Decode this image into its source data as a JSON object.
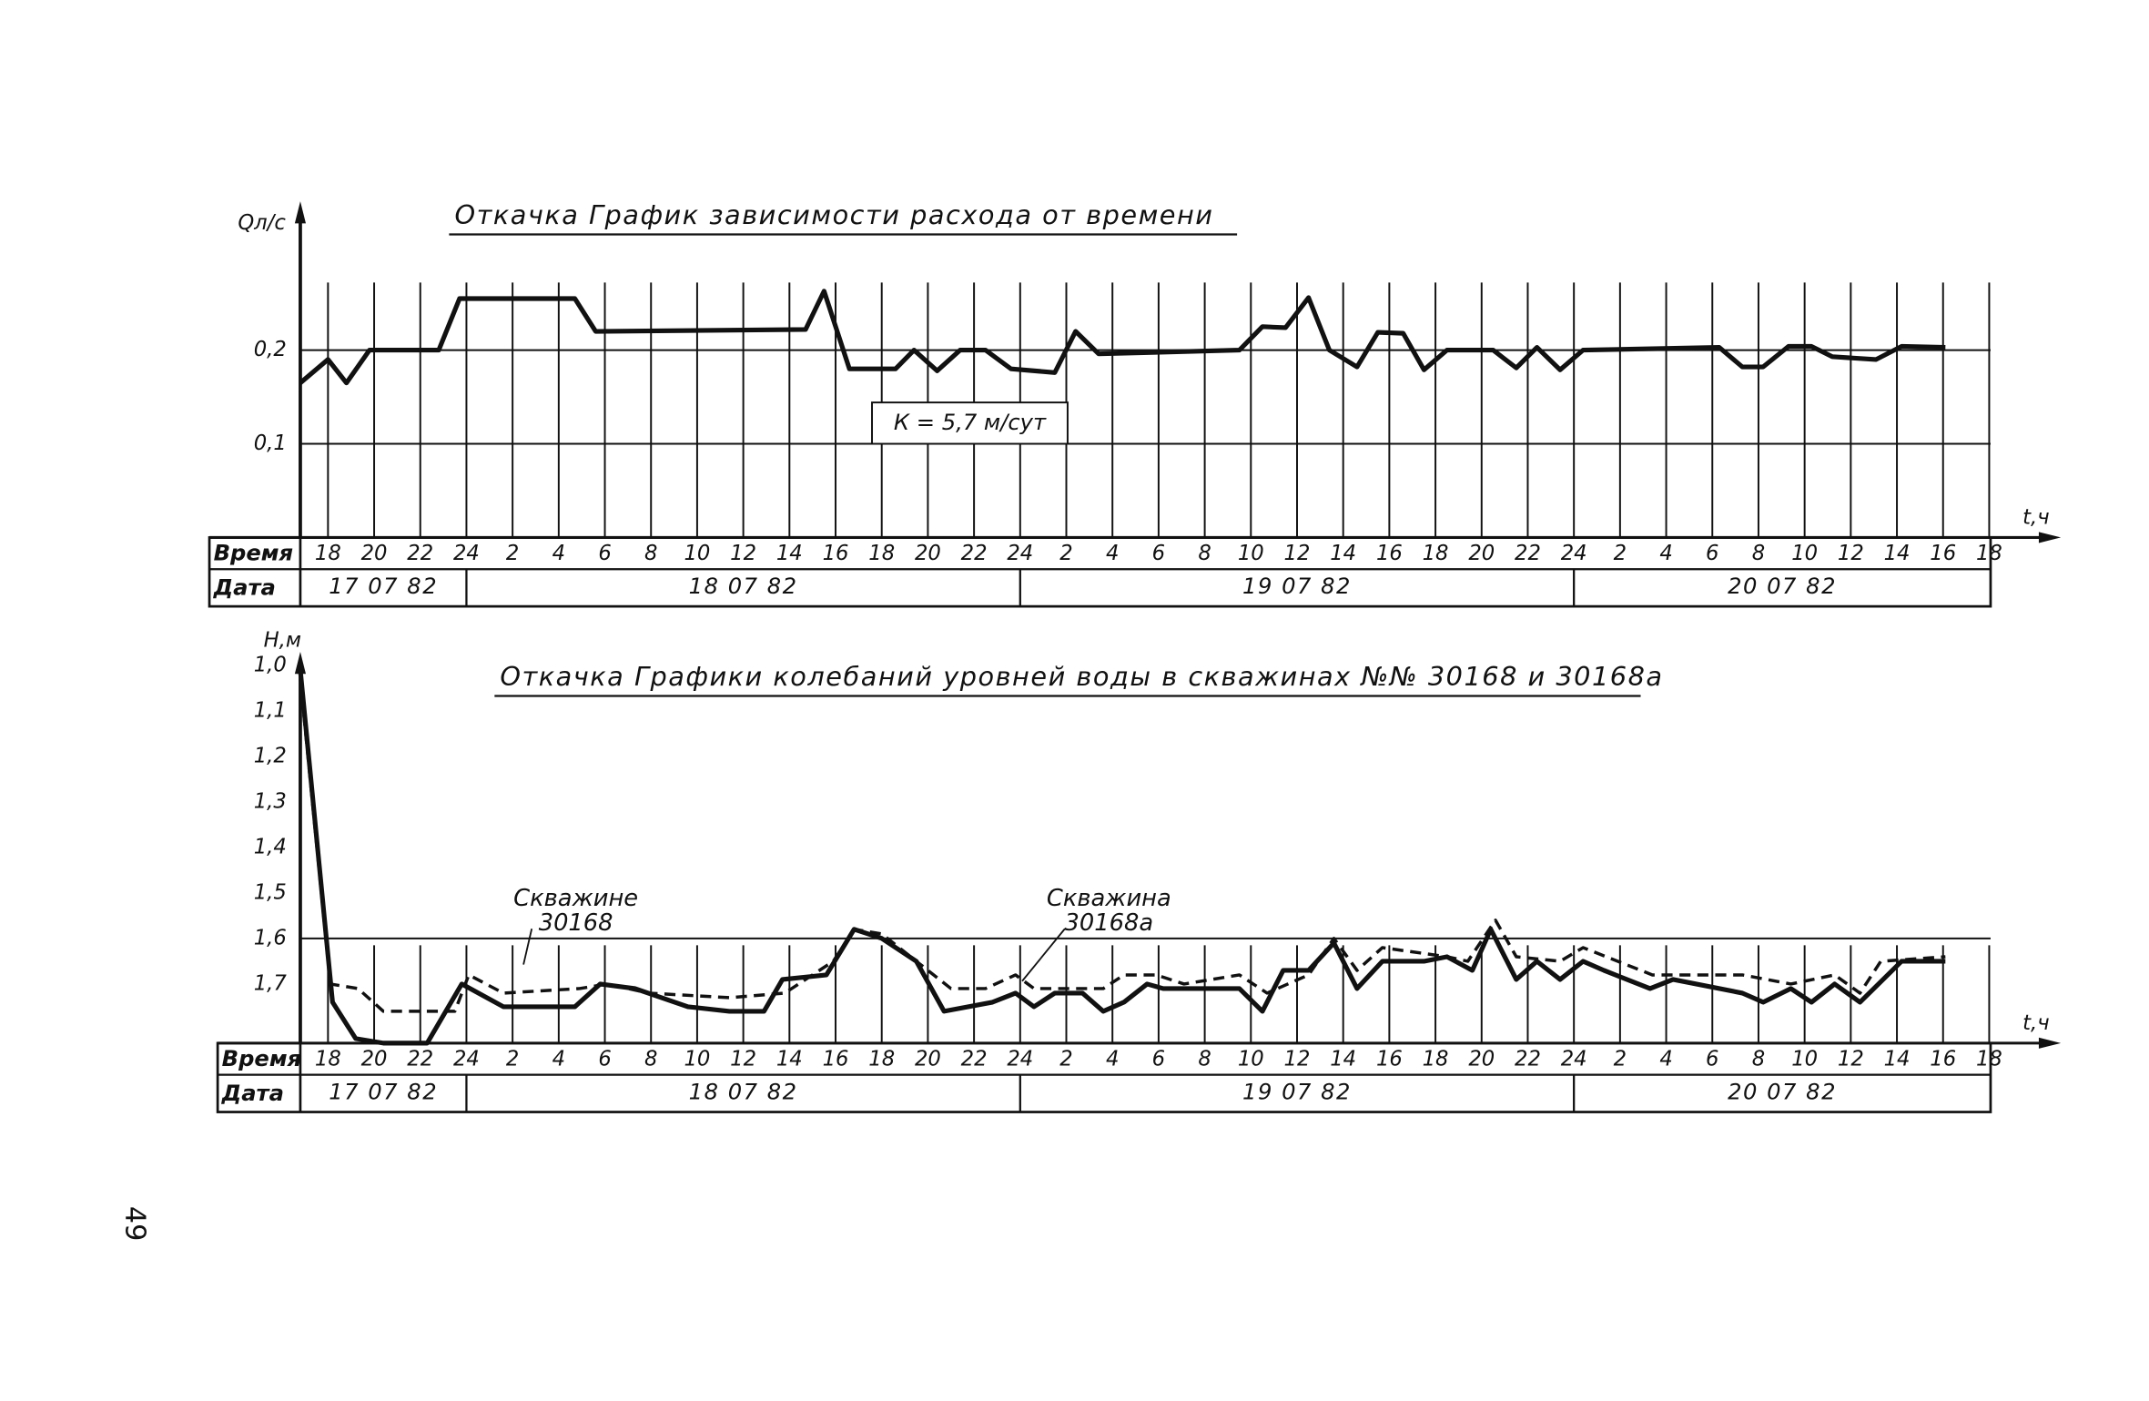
{
  "chart_data": [
    {
      "type": "line",
      "title": "Откачка  График зависимости расхода от времени",
      "y_label": "Qл/с",
      "x_label": "t,ч",
      "row_labels": [
        "Время",
        "Дата"
      ],
      "date_labels": [
        "17 07 82",
        "18 07 82",
        "19 07 82",
        "20 07 82"
      ],
      "annotation": "К = 5,7 м/сут",
      "xlim": [
        -1.2,
        72
      ],
      "ylim": [
        0,
        0.35
      ],
      "grid": true,
      "yticks": [
        {
          "value": 0.1,
          "label": "0,1"
        },
        {
          "value": 0.2,
          "label": "0,2"
        }
      ],
      "xticks": [
        {
          "value": 0,
          "label": "18"
        },
        {
          "value": 2,
          "label": "20"
        },
        {
          "value": 4,
          "label": "22"
        },
        {
          "value": 6,
          "label": "24"
        },
        {
          "value": 8,
          "label": "2"
        },
        {
          "value": 10,
          "label": "4"
        },
        {
          "value": 12,
          "label": "6"
        },
        {
          "value": 14,
          "label": "8"
        },
        {
          "value": 16,
          "label": "10"
        },
        {
          "value": 18,
          "label": "12"
        },
        {
          "value": 20,
          "label": "14"
        },
        {
          "value": 22,
          "label": "16"
        },
        {
          "value": 24,
          "label": "18"
        },
        {
          "value": 26,
          "label": "20"
        },
        {
          "value": 28,
          "label": "22"
        },
        {
          "value": 30,
          "label": "24"
        },
        {
          "value": 32,
          "label": "2"
        },
        {
          "value": 34,
          "label": "4"
        },
        {
          "value": 36,
          "label": "6"
        },
        {
          "value": 38,
          "label": "8"
        },
        {
          "value": 40,
          "label": "10"
        },
        {
          "value": 42,
          "label": "12"
        },
        {
          "value": 44,
          "label": "14"
        },
        {
          "value": 46,
          "label": "16"
        },
        {
          "value": 48,
          "label": "18"
        },
        {
          "value": 50,
          "label": "20"
        },
        {
          "value": 52,
          "label": "22"
        },
        {
          "value": 54,
          "label": "24"
        },
        {
          "value": 56,
          "label": "2"
        },
        {
          "value": 58,
          "label": "4"
        },
        {
          "value": 60,
          "label": "6"
        },
        {
          "value": 62,
          "label": "8"
        },
        {
          "value": 64,
          "label": "10"
        },
        {
          "value": 66,
          "label": "12"
        },
        {
          "value": 68,
          "label": "14"
        },
        {
          "value": 70,
          "label": "16"
        },
        {
          "value": 72,
          "label": "18"
        }
      ],
      "series": [
        {
          "color": "#111",
          "style": "solid",
          "x": [
            -1.2,
            0,
            0.8,
            1.8,
            4.8,
            5.7,
            10.7,
            11.6,
            20.7,
            21.5,
            22.6,
            24.6,
            25.4,
            26.4,
            27.4,
            28.5,
            29.6,
            31.5,
            32.4,
            33.4,
            39.5,
            40.5,
            41.5,
            42.5,
            43.4,
            44.6,
            45.5,
            46.6,
            47.5,
            48.5,
            50.5,
            51.5,
            52.4,
            53.4,
            54.4,
            60.3,
            61.3,
            62.2,
            63.3,
            64.3,
            65.2,
            67.1,
            68.2,
            70.1
          ],
          "values": [
            0.165,
            0.19,
            0.165,
            0.2,
            0.2,
            0.255,
            0.255,
            0.22,
            0.222,
            0.263,
            0.18,
            0.18,
            0.2,
            0.178,
            0.2,
            0.2,
            0.18,
            0.176,
            0.22,
            0.196,
            0.2,
            0.225,
            0.224,
            0.256,
            0.2,
            0.182,
            0.219,
            0.218,
            0.179,
            0.2,
            0.2,
            0.181,
            0.203,
            0.179,
            0.2,
            0.203,
            0.182,
            0.182,
            0.204,
            0.204,
            0.193,
            0.19,
            0.204,
            0.203
          ]
        }
      ]
    },
    {
      "type": "line",
      "title": "Откачка  Графики колебаний уровней воды в скважинах №№ 30168 и 30168а",
      "y_label": "H,м",
      "x_label": "t,ч",
      "row_labels": [
        "Время",
        "Дата"
      ],
      "date_labels": [
        "17 07 82",
        "18 07 82",
        "19 07 82",
        "20 07 82"
      ],
      "xlim": [
        -1.2,
        72
      ],
      "ylim": [
        1.83,
        0.97
      ],
      "ygrid": [
        1.6
      ],
      "yticks": [
        {
          "value": 1.0,
          "label": "1,0"
        },
        {
          "value": 1.1,
          "label": "1,1"
        },
        {
          "value": 1.2,
          "label": "1,2"
        },
        {
          "value": 1.3,
          "label": "1,3"
        },
        {
          "value": 1.4,
          "label": "1,4"
        },
        {
          "value": 1.5,
          "label": "1,5"
        },
        {
          "value": 1.6,
          "label": "1,6"
        },
        {
          "value": 1.7,
          "label": "1,7"
        }
      ],
      "xticks": [
        {
          "value": 0,
          "label": "18"
        },
        {
          "value": 2,
          "label": "20"
        },
        {
          "value": 4,
          "label": "22"
        },
        {
          "value": 6,
          "label": "24"
        },
        {
          "value": 8,
          "label": "2"
        },
        {
          "value": 10,
          "label": "4"
        },
        {
          "value": 12,
          "label": "6"
        },
        {
          "value": 14,
          "label": "8"
        },
        {
          "value": 16,
          "label": "10"
        },
        {
          "value": 18,
          "label": "12"
        },
        {
          "value": 20,
          "label": "14"
        },
        {
          "value": 22,
          "label": "16"
        },
        {
          "value": 24,
          "label": "18"
        },
        {
          "value": 26,
          "label": "20"
        },
        {
          "value": 28,
          "label": "22"
        },
        {
          "value": 30,
          "label": "24"
        },
        {
          "value": 32,
          "label": "2"
        },
        {
          "value": 34,
          "label": "4"
        },
        {
          "value": 36,
          "label": "6"
        },
        {
          "value": 38,
          "label": "8"
        },
        {
          "value": 40,
          "label": "10"
        },
        {
          "value": 42,
          "label": "12"
        },
        {
          "value": 44,
          "label": "14"
        },
        {
          "value": 46,
          "label": "16"
        },
        {
          "value": 48,
          "label": "18"
        },
        {
          "value": 50,
          "label": "20"
        },
        {
          "value": 52,
          "label": "22"
        },
        {
          "value": 54,
          "label": "24"
        },
        {
          "value": 56,
          "label": "2"
        },
        {
          "value": 58,
          "label": "4"
        },
        {
          "value": 60,
          "label": "6"
        },
        {
          "value": 62,
          "label": "8"
        },
        {
          "value": 64,
          "label": "10"
        },
        {
          "value": 66,
          "label": "12"
        },
        {
          "value": 68,
          "label": "14"
        },
        {
          "value": 70,
          "label": "16"
        },
        {
          "value": 72,
          "label": "18"
        }
      ],
      "series": [
        {
          "name": "Скважине 30168",
          "color": "#111",
          "style": "solid",
          "x": [
            -1.2,
            0.2,
            1.2,
            2.4,
            4.3,
            5.8,
            7.6,
            10.7,
            11.8,
            13.3,
            15.6,
            17.4,
            18.9,
            19.7,
            21.6,
            22.8,
            24.0,
            25.5,
            26.7,
            28.8,
            29.8,
            30.6,
            31.5,
            32.7,
            33.6,
            34.5,
            35.5,
            36.2,
            39.5,
            40.5,
            41.4,
            42.5,
            43.6,
            44.6,
            45.7,
            47.5,
            48.5,
            49.6,
            50.4,
            51.5,
            52.4,
            53.4,
            54.4,
            55.3,
            57.3,
            58.3,
            61.3,
            62.2,
            63.4,
            64.3,
            65.3,
            66.4,
            68.2,
            70.1
          ],
          "values": [
            1.01,
            1.74,
            1.82,
            1.83,
            1.83,
            1.7,
            1.75,
            1.75,
            1.7,
            1.71,
            1.75,
            1.76,
            1.76,
            1.69,
            1.68,
            1.58,
            1.6,
            1.65,
            1.76,
            1.74,
            1.72,
            1.75,
            1.72,
            1.72,
            1.76,
            1.74,
            1.7,
            1.71,
            1.71,
            1.76,
            1.67,
            1.67,
            1.61,
            1.71,
            1.65,
            1.65,
            1.64,
            1.67,
            1.58,
            1.69,
            1.65,
            1.69,
            1.65,
            1.67,
            1.71,
            1.69,
            1.72,
            1.74,
            1.71,
            1.74,
            1.7,
            1.74,
            1.65,
            1.65
          ]
        },
        {
          "name": "Скважина 30168а",
          "color": "#111",
          "style": "dashed",
          "x": [
            -1.2,
            0.1,
            1.3,
            2.4,
            5.5,
            6.1,
            7.6,
            10.9,
            12.1,
            13.9,
            17.4,
            19.8,
            21.9,
            22.8,
            24.0,
            25.5,
            27.0,
            28.5,
            29.8,
            30.6,
            33.6,
            34.5,
            35.9,
            37.1,
            39.5,
            40.7,
            42.5,
            43.6,
            44.6,
            45.7,
            48.5,
            49.4,
            50.6,
            51.5,
            53.4,
            54.4,
            57.4,
            61.3,
            63.4,
            65.3,
            66.4,
            67.3,
            70.1
          ],
          "values": [
            1.03,
            1.7,
            1.71,
            1.76,
            1.76,
            1.68,
            1.72,
            1.71,
            1.7,
            1.72,
            1.73,
            1.72,
            1.65,
            1.58,
            1.59,
            1.65,
            1.71,
            1.71,
            1.68,
            1.71,
            1.71,
            1.68,
            1.68,
            1.7,
            1.68,
            1.72,
            1.68,
            1.6,
            1.67,
            1.62,
            1.64,
            1.65,
            1.56,
            1.64,
            1.65,
            1.62,
            1.68,
            1.68,
            1.7,
            1.68,
            1.72,
            1.65,
            1.64
          ]
        }
      ]
    }
  ],
  "page_number": "49"
}
